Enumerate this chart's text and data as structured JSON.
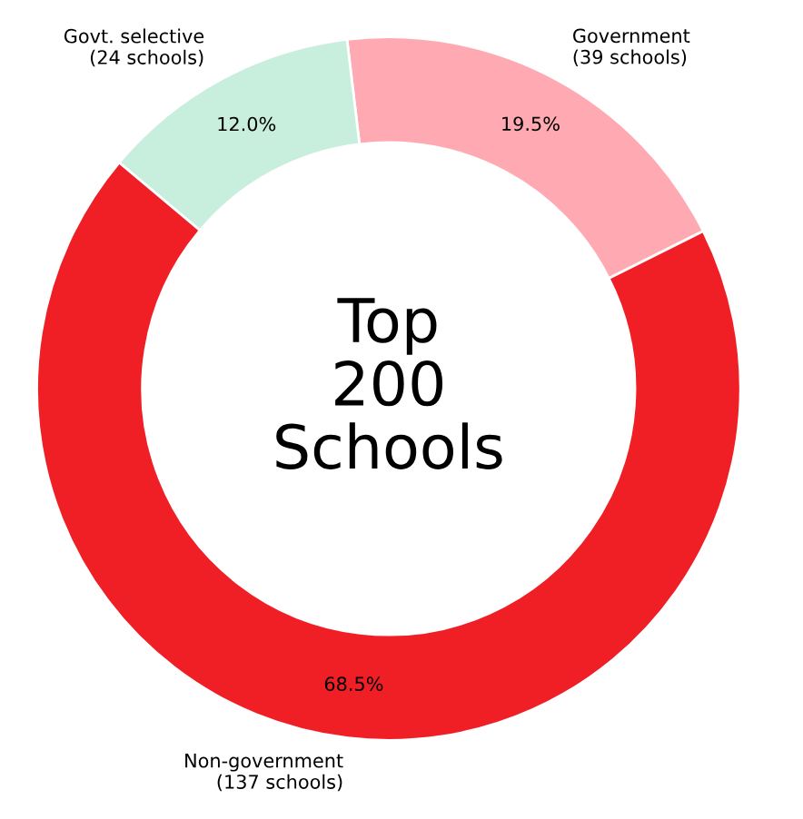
{
  "chart_data": {
    "type": "donut",
    "categories": [
      "Government\n(39 schools)",
      "Govt. selective\n(24 schools)",
      "Non-government\n(137 schools)"
    ],
    "values": [
      19.5,
      12.0,
      68.5
    ],
    "value_labels": [
      "19.5%",
      "12.0%",
      "68.5%"
    ],
    "colors": [
      "#ffaab2",
      "#c8eedd",
      "#f01f26"
    ],
    "annotations": [
      "Top\n200\nSchools"
    ]
  }
}
